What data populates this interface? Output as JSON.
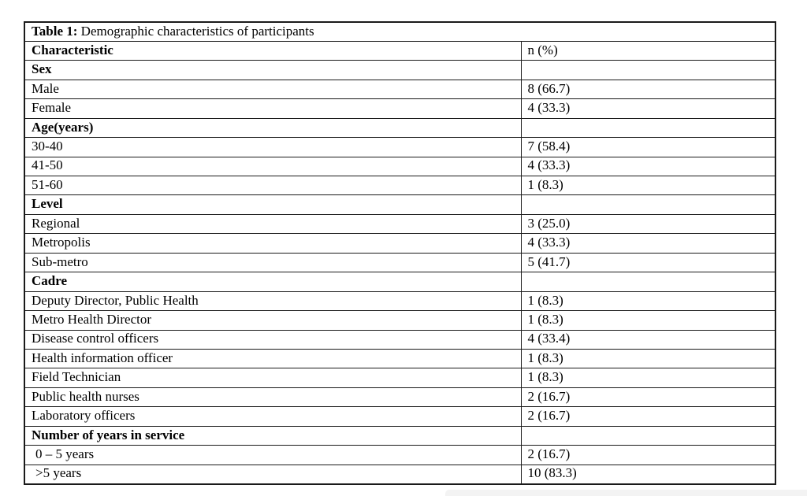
{
  "page": {
    "background": "#ffffff",
    "border_color": "#1a1a1a"
  },
  "table": {
    "title": {
      "label": "Table 1:",
      "text": " Demographic characteristics of participants"
    },
    "header": {
      "characteristic": "Characteristic",
      "n_pct": "n (%)"
    },
    "rows": [
      {
        "label": "Sex",
        "value": "",
        "bold": true,
        "indent": false
      },
      {
        "label": "Male",
        "value": "8 (66.7)",
        "bold": false,
        "indent": false
      },
      {
        "label": "Female",
        "value": "4 (33.3)",
        "bold": false,
        "indent": false
      },
      {
        "label": "Age(years)",
        "value": "",
        "bold": true,
        "indent": false
      },
      {
        "label": "30-40",
        "value": "7 (58.4)",
        "bold": false,
        "indent": false
      },
      {
        "label": "41-50",
        "value": "4 (33.3)",
        "bold": false,
        "indent": false
      },
      {
        "label": "51-60",
        "value": "1 (8.3)",
        "bold": false,
        "indent": false
      },
      {
        "label": "Level",
        "value": "",
        "bold": true,
        "indent": false
      },
      {
        "label": "Regional",
        "value": "3 (25.0)",
        "bold": false,
        "indent": false
      },
      {
        "label": "Metropolis",
        "value": "4 (33.3)",
        "bold": false,
        "indent": false
      },
      {
        "label": "Sub-metro",
        "value": "5 (41.7)",
        "bold": false,
        "indent": false
      },
      {
        "label": "Cadre",
        "value": "",
        "bold": true,
        "indent": false
      },
      {
        "label": "Deputy Director, Public Health",
        "value": "1 (8.3)",
        "bold": false,
        "indent": false
      },
      {
        "label": "Metro Health Director",
        "value": "1 (8.3)",
        "bold": false,
        "indent": false
      },
      {
        "label": "Disease control officers",
        "value": "4 (33.4)",
        "bold": false,
        "indent": false
      },
      {
        "label": "Health information officer",
        "value": "1 (8.3)",
        "bold": false,
        "indent": false
      },
      {
        "label": "Field Technician",
        "value": "1 (8.3)",
        "bold": false,
        "indent": false
      },
      {
        "label": "Public health nurses",
        "value": "2 (16.7)",
        "bold": false,
        "indent": false
      },
      {
        "label": "Laboratory officers",
        "value": "2 (16.7)",
        "bold": false,
        "indent": false
      },
      {
        "label": "Number of years in service",
        "value": "",
        "bold": true,
        "indent": false
      },
      {
        "label": "0 – 5 years",
        "value": "2 (16.7)",
        "bold": false,
        "indent": true
      },
      {
        "label": ">5 years",
        "value": "10 (83.3)",
        "bold": false,
        "indent": true
      }
    ]
  },
  "decor": {
    "bottom_bar_color": "#f3f3f3"
  }
}
